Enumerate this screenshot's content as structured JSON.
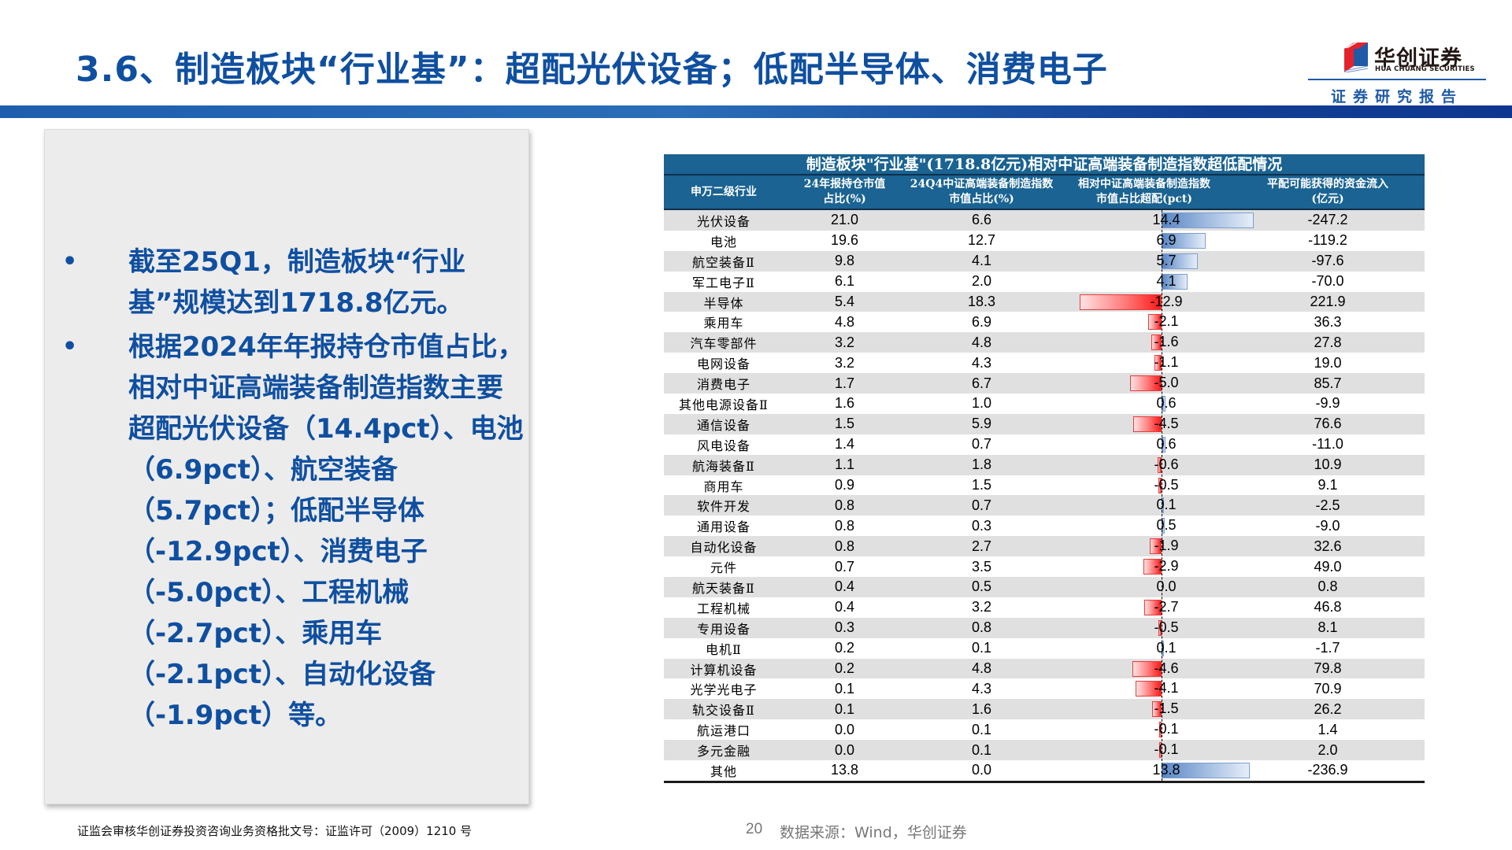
{
  "header": {
    "title": "3.6、制造板块“行业基”：超配光伏设备；低配半导体、消费电子",
    "logo_cn": "华创证券",
    "logo_en": "HUA CHUANG SECURITIES",
    "logo_sub": "证券研究报告"
  },
  "left_panel": {
    "bullets": [
      "截至25Q1，制造板块“行业基”规模达到1718.8亿元。",
      "根据2024年年报持仓市值占比，相对中证高端装备制造指数主要超配光伏设备（14.4pct）、电池（6.9pct）、航空装备（5.7pct）；低配半导体（-12.9pct）、消费电子（-5.0pct）、工程机械（-2.7pct）、乘用车（-2.1pct）、自动化设备（-1.9pct）等。"
    ]
  },
  "table": {
    "title": "制造板块\"行业基\"(1718.8亿元)相对中证高端装备制造指数超低配情况",
    "columns": [
      {
        "line1": "申万二级行业",
        "line2": ""
      },
      {
        "line1": "24年报持仓市值",
        "line2": "占比(%)"
      },
      {
        "line1": "24Q4中证高端装备制造指数",
        "line2": "市值占比(%)"
      },
      {
        "line1": "相对中证高端装备制造指数",
        "line2": "市值占比超配(pct)"
      },
      {
        "line1": "平配可能获得的资金流入",
        "line2": "(亿元)"
      }
    ],
    "colors": {
      "header_bg": "#1a6392",
      "positive_bar": "#5a86c4",
      "negative_bar": "#ff1a1a",
      "row_alt": "#e0e0e0"
    },
    "rows": [
      {
        "industry": "光伏设备",
        "fund_pct": "21.0",
        "index_pct": "6.6",
        "over": "14.4",
        "flow": "-247.2"
      },
      {
        "industry": "电池",
        "fund_pct": "19.6",
        "index_pct": "12.7",
        "over": "6.9",
        "flow": "-119.2"
      },
      {
        "industry": "航空装备Ⅱ",
        "fund_pct": "9.8",
        "index_pct": "4.1",
        "over": "5.7",
        "flow": "-97.6"
      },
      {
        "industry": "军工电子Ⅱ",
        "fund_pct": "6.1",
        "index_pct": "2.0",
        "over": "4.1",
        "flow": "-70.0"
      },
      {
        "industry": "半导体",
        "fund_pct": "5.4",
        "index_pct": "18.3",
        "over": "-12.9",
        "flow": "221.9"
      },
      {
        "industry": "乘用车",
        "fund_pct": "4.8",
        "index_pct": "6.9",
        "over": "-2.1",
        "flow": "36.3"
      },
      {
        "industry": "汽车零部件",
        "fund_pct": "3.2",
        "index_pct": "4.8",
        "over": "-1.6",
        "flow": "27.8"
      },
      {
        "industry": "电网设备",
        "fund_pct": "3.2",
        "index_pct": "4.3",
        "over": "-1.1",
        "flow": "19.0"
      },
      {
        "industry": "消费电子",
        "fund_pct": "1.7",
        "index_pct": "6.7",
        "over": "-5.0",
        "flow": "85.7"
      },
      {
        "industry": "其他电源设备Ⅱ",
        "fund_pct": "1.6",
        "index_pct": "1.0",
        "over": "0.6",
        "flow": "-9.9"
      },
      {
        "industry": "通信设备",
        "fund_pct": "1.5",
        "index_pct": "5.9",
        "over": "-4.5",
        "flow": "76.6"
      },
      {
        "industry": "风电设备",
        "fund_pct": "1.4",
        "index_pct": "0.7",
        "over": "0.6",
        "flow": "-11.0"
      },
      {
        "industry": "航海装备Ⅱ",
        "fund_pct": "1.1",
        "index_pct": "1.8",
        "over": "-0.6",
        "flow": "10.9"
      },
      {
        "industry": "商用车",
        "fund_pct": "0.9",
        "index_pct": "1.5",
        "over": "-0.5",
        "flow": "9.1"
      },
      {
        "industry": "软件开发",
        "fund_pct": "0.8",
        "index_pct": "0.7",
        "over": "0.1",
        "flow": "-2.5"
      },
      {
        "industry": "通用设备",
        "fund_pct": "0.8",
        "index_pct": "0.3",
        "over": "0.5",
        "flow": "-9.0"
      },
      {
        "industry": "自动化设备",
        "fund_pct": "0.8",
        "index_pct": "2.7",
        "over": "-1.9",
        "flow": "32.6"
      },
      {
        "industry": "元件",
        "fund_pct": "0.7",
        "index_pct": "3.5",
        "over": "-2.9",
        "flow": "49.0"
      },
      {
        "industry": "航天装备Ⅱ",
        "fund_pct": "0.4",
        "index_pct": "0.5",
        "over": "0.0",
        "flow": "0.8"
      },
      {
        "industry": "工程机械",
        "fund_pct": "0.4",
        "index_pct": "3.2",
        "over": "-2.7",
        "flow": "46.8"
      },
      {
        "industry": "专用设备",
        "fund_pct": "0.3",
        "index_pct": "0.8",
        "over": "-0.5",
        "flow": "8.1"
      },
      {
        "industry": "电机Ⅱ",
        "fund_pct": "0.2",
        "index_pct": "0.1",
        "over": "0.1",
        "flow": "-1.7"
      },
      {
        "industry": "计算机设备",
        "fund_pct": "0.2",
        "index_pct": "4.8",
        "over": "-4.6",
        "flow": "79.8"
      },
      {
        "industry": "光学光电子",
        "fund_pct": "0.1",
        "index_pct": "4.3",
        "over": "-4.1",
        "flow": "70.9"
      },
      {
        "industry": "轨交设备Ⅱ",
        "fund_pct": "0.1",
        "index_pct": "1.6",
        "over": "-1.5",
        "flow": "26.2"
      },
      {
        "industry": "航运港口",
        "fund_pct": "0.0",
        "index_pct": "0.1",
        "over": "-0.1",
        "flow": "1.4"
      },
      {
        "industry": "多元金融",
        "fund_pct": "0.0",
        "index_pct": "0.1",
        "over": "-0.1",
        "flow": "2.0"
      },
      {
        "industry": "其他",
        "fund_pct": "13.8",
        "index_pct": "0.0",
        "over": "13.8",
        "flow": "-236.9"
      }
    ]
  },
  "footer": {
    "license": "证监会审核华创证券投资咨询业务资格批文号：证监许可（2009）1210 号",
    "page_number": "20",
    "source": "数据来源：Wind，华创证券"
  }
}
